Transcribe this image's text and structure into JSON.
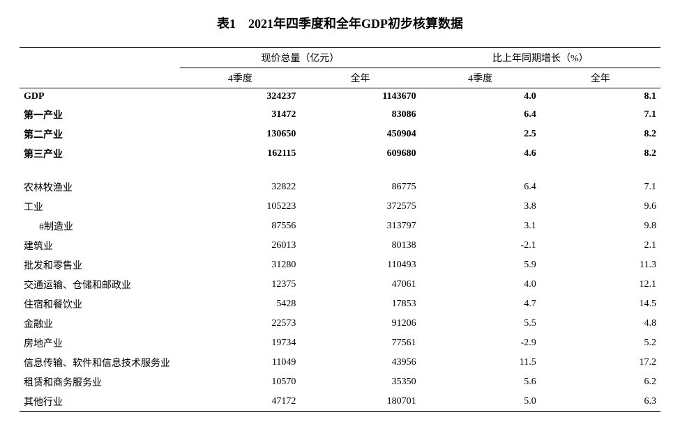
{
  "title": "表1　2021年四季度和全年GDP初步核算数据",
  "headers": {
    "group1": "现价总量（亿元）",
    "group2": "比上年同期增长（%）",
    "sub_q4": "4季度",
    "sub_year": "全年"
  },
  "boldRows": [
    {
      "label": "GDP",
      "q4_amt": "324237",
      "yr_amt": "1143670",
      "q4_g": "4.0",
      "yr_g": "8.1"
    },
    {
      "label": "第一产业",
      "q4_amt": "31472",
      "yr_amt": "83086",
      "q4_g": "6.4",
      "yr_g": "7.1"
    },
    {
      "label": "第二产业",
      "q4_amt": "130650",
      "yr_amt": "450904",
      "q4_g": "2.5",
      "yr_g": "8.2"
    },
    {
      "label": "第三产业",
      "q4_amt": "162115",
      "yr_amt": "609680",
      "q4_g": "4.6",
      "yr_g": "8.2"
    }
  ],
  "detailRows": [
    {
      "label": "农林牧渔业",
      "q4_amt": "32822",
      "yr_amt": "86775",
      "q4_g": "6.4",
      "yr_g": "7.1",
      "indent": false
    },
    {
      "label": "工业",
      "q4_amt": "105223",
      "yr_amt": "372575",
      "q4_g": "3.8",
      "yr_g": "9.6",
      "indent": false
    },
    {
      "label": "#制造业",
      "q4_amt": "87556",
      "yr_amt": "313797",
      "q4_g": "3.1",
      "yr_g": "9.8",
      "indent": true
    },
    {
      "label": "建筑业",
      "q4_amt": "26013",
      "yr_amt": "80138",
      "q4_g": "-2.1",
      "yr_g": "2.1",
      "indent": false
    },
    {
      "label": "批发和零售业",
      "q4_amt": "31280",
      "yr_amt": "110493",
      "q4_g": "5.9",
      "yr_g": "11.3",
      "indent": false
    },
    {
      "label": "交通运输、仓储和邮政业",
      "q4_amt": "12375",
      "yr_amt": "47061",
      "q4_g": "4.0",
      "yr_g": "12.1",
      "indent": false
    },
    {
      "label": "住宿和餐饮业",
      "q4_amt": "5428",
      "yr_amt": "17853",
      "q4_g": "4.7",
      "yr_g": "14.5",
      "indent": false
    },
    {
      "label": "金融业",
      "q4_amt": "22573",
      "yr_amt": "91206",
      "q4_g": "5.5",
      "yr_g": "4.8",
      "indent": false
    },
    {
      "label": "房地产业",
      "q4_amt": "19734",
      "yr_amt": "77561",
      "q4_g": "-2.9",
      "yr_g": "5.2",
      "indent": false
    },
    {
      "label": "信息传输、软件和信息技术服务业",
      "q4_amt": "11049",
      "yr_amt": "43956",
      "q4_g": "11.5",
      "yr_g": "17.2",
      "indent": false
    },
    {
      "label": "租赁和商务服务业",
      "q4_amt": "10570",
      "yr_amt": "35350",
      "q4_g": "5.6",
      "yr_g": "6.2",
      "indent": false
    },
    {
      "label": "其他行业",
      "q4_amt": "47172",
      "yr_amt": "180701",
      "q4_g": "5.0",
      "yr_g": "6.3",
      "indent": false
    }
  ],
  "style": {
    "background": "#ffffff",
    "text_color": "#000000",
    "border_color": "#000000",
    "title_fontsize": 18,
    "body_fontsize": 14
  }
}
